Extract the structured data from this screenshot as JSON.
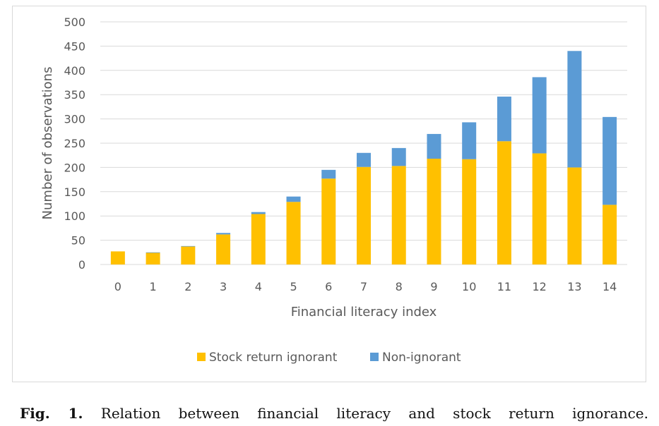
{
  "caption": {
    "label": "Fig. 1.",
    "text": "Relation between financial literacy and stock return ignorance."
  },
  "colors": {
    "ignorant": "#ffc000",
    "non_ignorant": "#5b9bd5",
    "grid": "#d9d9d9",
    "text": "#595959"
  },
  "chart_data": {
    "type": "bar",
    "stacked": true,
    "categories": [
      "0",
      "1",
      "2",
      "3",
      "4",
      "5",
      "6",
      "7",
      "8",
      "9",
      "10",
      "11",
      "12",
      "13",
      "14"
    ],
    "series": [
      {
        "name": "Stock return ignorant",
        "values": [
          27,
          24,
          37,
          62,
          104,
          129,
          177,
          201,
          203,
          218,
          217,
          254,
          229,
          200,
          123
        ]
      },
      {
        "name": "Non-ignorant",
        "values": [
          0,
          1,
          1,
          3,
          4,
          11,
          18,
          29,
          37,
          51,
          76,
          92,
          157,
          240,
          181
        ]
      }
    ],
    "xlabel": "Financial literacy index",
    "ylabel": "Number of observations",
    "ylim": [
      0,
      500
    ],
    "yticks": [
      0,
      50,
      100,
      150,
      200,
      250,
      300,
      350,
      400,
      450,
      500
    ],
    "grid": true,
    "legend_position": "bottom"
  }
}
